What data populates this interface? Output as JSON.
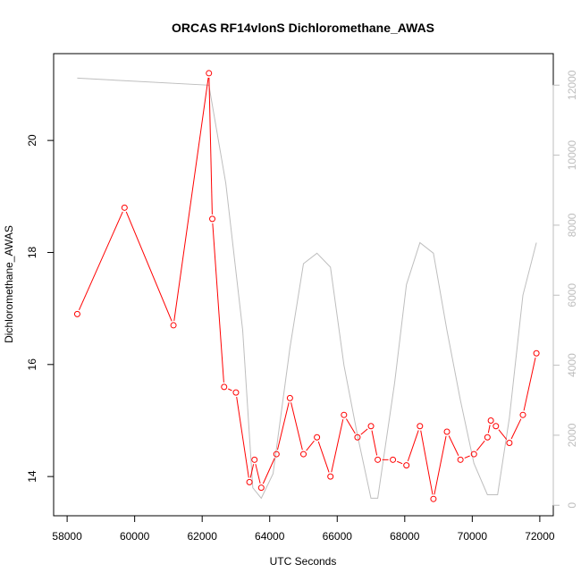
{
  "chart_data": {
    "type": "line",
    "title": "ORCAS RF14vlonS Dichloromethane_AWAS",
    "xlabel": "UTC Seconds",
    "ylabel": "Dichloromethane_AWAS",
    "xlim": [
      57600,
      72400
    ],
    "ylim": [
      13.3,
      21.55
    ],
    "y2lim": [
      -300,
      12900
    ],
    "x_ticks": [
      58000,
      60000,
      62000,
      64000,
      66000,
      68000,
      70000,
      72000
    ],
    "y_ticks": [
      14,
      16,
      18,
      20
    ],
    "y2_ticks": [
      0,
      2000,
      4000,
      6000,
      8000,
      10000,
      12000
    ],
    "grid": false,
    "colors": {
      "primary": "#ff0000",
      "secondary": "#bebebe"
    },
    "series": [
      {
        "axis": "left",
        "color": "#ff0000",
        "markers": "open-circle",
        "x": [
          58300,
          59700,
          61150,
          62200,
          62300,
          62650,
          63000,
          63400,
          63550,
          63750,
          64200,
          64600,
          65000,
          65400,
          65800,
          66200,
          66600,
          67000,
          67200,
          67650,
          68050,
          68450,
          68850,
          69250,
          69650,
          70050,
          70450,
          70550,
          70700,
          71100,
          71500,
          71900
        ],
        "y": [
          16.9,
          18.8,
          16.7,
          21.2,
          18.6,
          15.6,
          15.5,
          13.9,
          14.3,
          13.8,
          14.4,
          15.4,
          14.4,
          14.7,
          14.0,
          15.1,
          14.7,
          14.9,
          14.3,
          14.3,
          14.2,
          14.9,
          13.6,
          14.8,
          14.3,
          14.4,
          14.7,
          15.0,
          14.9,
          14.6,
          15.1,
          16.2
        ]
      },
      {
        "axis": "right",
        "color": "#bebebe",
        "markers": "none",
        "x": [
          58300,
          62200,
          62700,
          63200,
          63500,
          63750,
          64100,
          64600,
          65000,
          65400,
          65800,
          66200,
          66600,
          67000,
          67200,
          67700,
          68050,
          68450,
          68850,
          69250,
          69650,
          70050,
          70450,
          70750,
          71100,
          71500,
          71900
        ],
        "y": [
          12200,
          12000,
          9200,
          5000,
          500,
          200,
          900,
          4500,
          6900,
          7200,
          6800,
          4000,
          2000,
          200,
          200,
          3500,
          6300,
          7500,
          7200,
          5000,
          3000,
          1200,
          300,
          300,
          2500,
          6000,
          7500
        ]
      }
    ]
  }
}
